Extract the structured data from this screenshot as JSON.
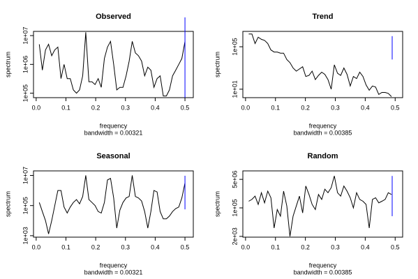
{
  "chart_data": [
    {
      "type": "line",
      "title": "Observed",
      "xlabel": "frequency",
      "ylabel": "spectrum",
      "subtitle": "bandwidth = 0.00321",
      "color": "#000000",
      "log_y": true,
      "xlim": [
        -0.009,
        0.528
      ],
      "ylim": [
        70000,
        14000000
      ],
      "xticks": [
        {
          "value": 0,
          "label": "0.0"
        },
        0.1,
        0.2,
        0.3,
        0.4,
        0.5
      ],
      "yticks": [
        {
          "value": 100000,
          "label": "1e+05"
        },
        {
          "value": 1000000,
          "label": "1e+06"
        },
        {
          "value": 10000000,
          "label": "1e+07"
        }
      ],
      "ci": {
        "x": 0.5,
        "lower": 70000,
        "upper": 43000000,
        "color": "#0000ff"
      },
      "x": [
        0.0104,
        0.0208,
        0.0313,
        0.0417,
        0.0521,
        0.0625,
        0.0729,
        0.0833,
        0.0938,
        0.1042,
        0.1146,
        0.125,
        0.1354,
        0.1458,
        0.1563,
        0.1667,
        0.1771,
        0.1875,
        0.1979,
        0.2083,
        0.2188,
        0.2292,
        0.2396,
        0.25,
        0.2604,
        0.2708,
        0.2813,
        0.2917,
        0.3021,
        0.3125,
        0.3229,
        0.3333,
        0.3438,
        0.3542,
        0.3646,
        0.375,
        0.3854,
        0.3958,
        0.4063,
        0.4167,
        0.4271,
        0.4375,
        0.4479,
        0.4583,
        0.4688,
        0.4792,
        0.4896,
        0.5
      ],
      "values": [
        5000000.0,
        630000.0,
        3200000.0,
        5000000.0,
        2000000.0,
        3200000.0,
        4000000.0,
        320000.0,
        1000000.0,
        320000.0,
        320000.0,
        130000.0,
        100000.0,
        130000.0,
        400000.0,
        13000000.0,
        250000.0,
        250000.0,
        200000.0,
        320000.0,
        160000.0,
        1600000.0,
        4000000.0,
        6300000.0,
        1000000.0,
        130000.0,
        160000.0,
        160000.0,
        400000.0,
        1300000.0,
        6300000.0,
        2500000.0,
        2000000.0,
        1300000.0,
        400000.0,
        800000.0,
        630000.0,
        160000.0,
        320000.0,
        400000.0,
        80000.0,
        80000.0,
        130000.0,
        400000.0,
        630000.0,
        1000000.0,
        1600000.0,
        6300000.0
      ]
    },
    {
      "type": "line",
      "title": "Trend",
      "xlabel": "frequency",
      "ylabel": "spectrum",
      "subtitle": "bandwidth = 0.00385",
      "color": "#000000",
      "log_y": true,
      "xlim": [
        -0.009,
        0.525
      ],
      "ylim": [
        1.6,
        2800000
      ],
      "xticks": [
        {
          "value": 0,
          "label": "0.0"
        },
        0.1,
        0.2,
        0.3,
        0.4,
        0.5
      ],
      "yticks": [
        {
          "value": 10,
          "label": "1e+01"
        },
        {
          "value": 100000,
          "label": "1e+05"
        }
      ],
      "ci": {
        "x": 0.49,
        "lower": 6300,
        "upper": 1000000,
        "color": "#0000ff"
      },
      "x": [
        0.0106,
        0.0212,
        0.0318,
        0.0424,
        0.053,
        0.0636,
        0.0742,
        0.0848,
        0.0954,
        0.106,
        0.1166,
        0.1272,
        0.1378,
        0.1484,
        0.159,
        0.1696,
        0.1802,
        0.1908,
        0.2014,
        0.212,
        0.2226,
        0.2332,
        0.2438,
        0.2544,
        0.265,
        0.2756,
        0.2862,
        0.2968,
        0.3074,
        0.318,
        0.3286,
        0.3392,
        0.3498,
        0.3604,
        0.371,
        0.3816,
        0.3922,
        0.4028,
        0.4134,
        0.424,
        0.4346,
        0.4452,
        0.4558,
        0.4664,
        0.477,
        0.4876
      ],
      "values": [
        1600000.0,
        1600000.0,
        200000.0,
        800000.0,
        500000.0,
        400000.0,
        200000.0,
        50000.0,
        32000.0,
        32000.0,
        25000.0,
        25000.0,
        6300,
        3200,
        1000,
        500,
        800,
        1300,
        160,
        200,
        500,
        80,
        200,
        400,
        250,
        80,
        10,
        2000,
        320,
        200,
        1000,
        250,
        20,
        160,
        100,
        400,
        160,
        25,
        8,
        20,
        16,
        3.2,
        5,
        5,
        4,
        2
      ]
    },
    {
      "type": "line",
      "title": "Seasonal",
      "xlabel": "frequency",
      "ylabel": "spectrum",
      "subtitle": "bandwidth = 0.00321",
      "color": "#000000",
      "log_y": true,
      "xlim": [
        -0.009,
        0.528
      ],
      "ylim": [
        800,
        20000000
      ],
      "xticks": [
        {
          "value": 0,
          "label": "0.0"
        },
        0.1,
        0.2,
        0.3,
        0.4,
        0.5
      ],
      "yticks": [
        {
          "value": 1000,
          "label": "1e+03"
        },
        {
          "value": 100000,
          "label": "1e+05"
        },
        {
          "value": 10000000,
          "label": "1e+07"
        }
      ],
      "ci": {
        "x": 0.5,
        "lower": 56000,
        "upper": 9500000,
        "color": "#0000ff"
      },
      "x": [
        0.0104,
        0.0208,
        0.0313,
        0.0417,
        0.0521,
        0.0625,
        0.0729,
        0.0833,
        0.0938,
        0.1042,
        0.1146,
        0.125,
        0.1354,
        0.1458,
        0.1563,
        0.1667,
        0.1771,
        0.1875,
        0.1979,
        0.2083,
        0.2188,
        0.2292,
        0.2396,
        0.25,
        0.2604,
        0.2708,
        0.2813,
        0.2917,
        0.3021,
        0.3125,
        0.3229,
        0.3333,
        0.3438,
        0.3542,
        0.3646,
        0.375,
        0.3854,
        0.3958,
        0.4063,
        0.4167,
        0.4271,
        0.4375,
        0.4479,
        0.4583,
        0.4688,
        0.4792,
        0.4896,
        0.5
      ],
      "values": [
        160000.0,
        40000.0,
        10000.0,
        1300,
        10000.0,
        100000.0,
        1000000.0,
        1000000.0,
        80000.0,
        32000.0,
        80000.0,
        160000.0,
        250000.0,
        130000.0,
        400000.0,
        10000000.0,
        250000.0,
        160000.0,
        100000.0,
        40000.0,
        32000.0,
        160000.0,
        5000000.0,
        6300000.0,
        320000.0,
        3200,
        50000.0,
        160000.0,
        320000.0,
        400000.0,
        10000000.0,
        400000.0,
        320000.0,
        200000.0,
        40000.0,
        3200,
        40000.0,
        1000000.0,
        800000.0,
        40000.0,
        13000.0,
        13000.0,
        20000.0,
        40000.0,
        63000.0,
        80000.0,
        320000.0,
        3200000.0
      ]
    },
    {
      "type": "line",
      "title": "Random",
      "xlabel": "frequency",
      "ylabel": "spectrum",
      "subtitle": "bandwidth = 0.00385",
      "color": "#000000",
      "log_y": true,
      "xlim": [
        -0.009,
        0.525
      ],
      "ylim": [
        1800,
        16000000
      ],
      "xticks": [
        {
          "value": 0,
          "label": "0.0"
        },
        0.1,
        0.2,
        0.3,
        0.4,
        0.5
      ],
      "yticks": [
        {
          "value": 2000,
          "label": "2e+03"
        },
        {
          "value": 100000,
          "label": "1e+05"
        },
        {
          "value": 5000000,
          "label": "5e+06"
        }
      ],
      "ci": {
        "x": 0.49,
        "lower": 32000,
        "upper": 8000000,
        "color": "#0000ff"
      },
      "x": [
        0.0106,
        0.0212,
        0.0318,
        0.0424,
        0.053,
        0.0636,
        0.0742,
        0.0848,
        0.0954,
        0.106,
        0.1166,
        0.1272,
        0.1378,
        0.1484,
        0.159,
        0.1696,
        0.1802,
        0.1908,
        0.2014,
        0.212,
        0.2226,
        0.2332,
        0.2438,
        0.2544,
        0.265,
        0.2756,
        0.2862,
        0.2968,
        0.3074,
        0.318,
        0.3286,
        0.3392,
        0.3498,
        0.3604,
        0.371,
        0.3816,
        0.3922,
        0.4028,
        0.4134,
        0.424,
        0.4346,
        0.4452,
        0.4558,
        0.4664,
        0.477,
        0.4876
      ],
      "values": [
        250000.0,
        320000.0,
        500000.0,
        160000.0,
        800000.0,
        200000.0,
        1000000.0,
        400000.0,
        6300,
        80000.0,
        32000.0,
        1000000.0,
        130000.0,
        2000,
        32000.0,
        130000.0,
        500000.0,
        50000.0,
        2000000.0,
        630000.0,
        160000.0,
        80000.0,
        630000.0,
        320000.0,
        1300000.0,
        800000.0,
        1600000.0,
        8000000.0,
        800000.0,
        500000.0,
        2000000.0,
        1000000.0,
        400000.0,
        100000.0,
        800000.0,
        320000.0,
        250000.0,
        160000.0,
        6300,
        320000.0,
        400000.0,
        200000.0,
        250000.0,
        320000.0,
        800000.0,
        630000.0
      ]
    }
  ]
}
